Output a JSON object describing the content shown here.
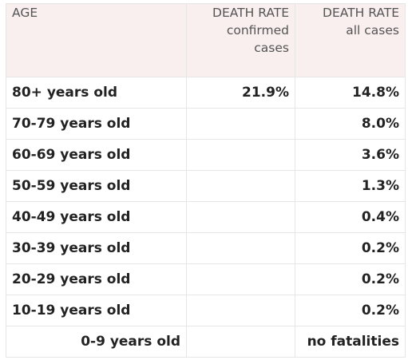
{
  "table": {
    "headers": {
      "age": "AGE",
      "confirmed": [
        "DEATH RATE",
        "confirmed",
        "cases"
      ],
      "all": [
        "DEATH RATE",
        "all cases"
      ]
    },
    "rows": [
      {
        "age": "80+ years old",
        "confirmed": "21.9%",
        "all": "14.8%"
      },
      {
        "age": "70-79 years old",
        "confirmed": "",
        "all": "8.0%"
      },
      {
        "age": "60-69 years old",
        "confirmed": "",
        "all": "3.6%"
      },
      {
        "age": "50-59 years old",
        "confirmed": "",
        "all": "1.3%"
      },
      {
        "age": "40-49 years old",
        "confirmed": "",
        "all": "0.4%"
      },
      {
        "age": "30-39 years old",
        "confirmed": "",
        "all": "0.2%"
      },
      {
        "age": "20-29 years old",
        "confirmed": "",
        "all": "0.2%"
      },
      {
        "age": "10-19 years old",
        "confirmed": "",
        "all": "0.2%"
      },
      {
        "age": "0-9 years old",
        "confirmed": "",
        "all": "no fatalities"
      }
    ]
  }
}
